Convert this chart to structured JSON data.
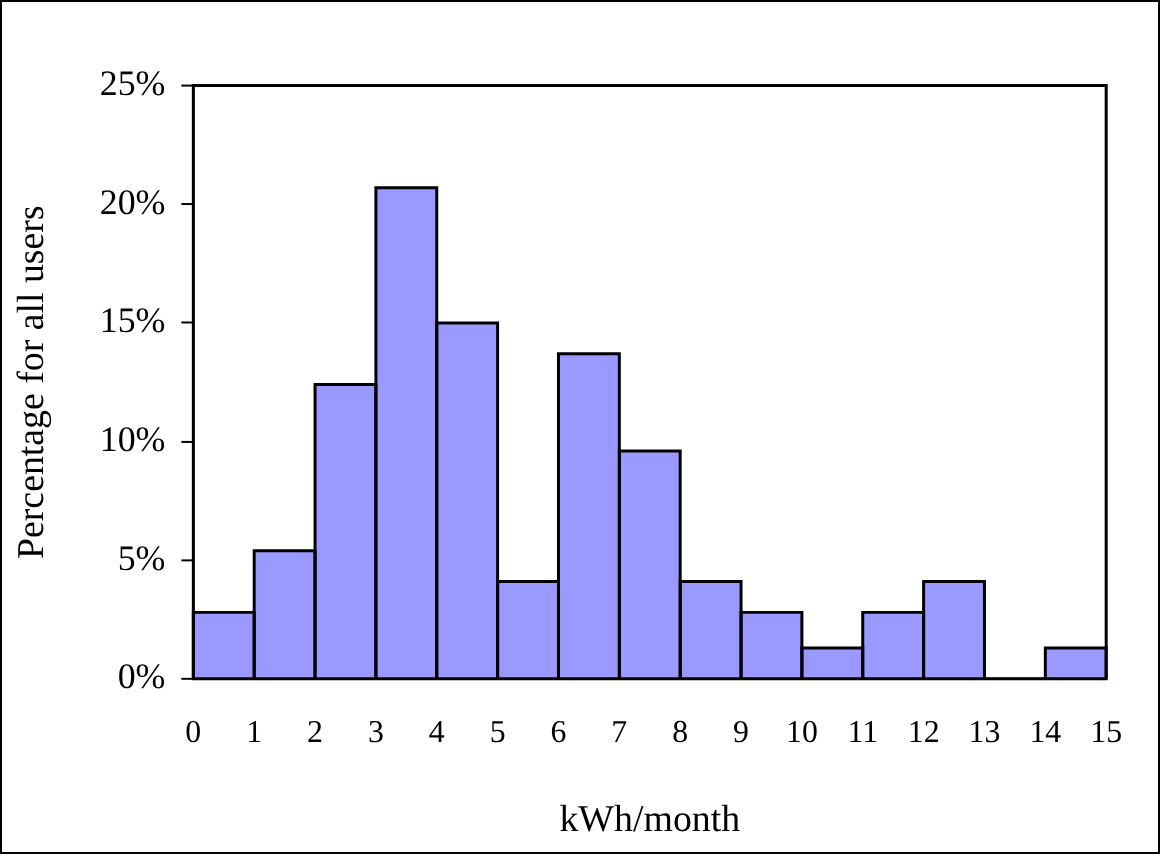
{
  "chart_data": {
    "type": "histogram",
    "xlabel": "kWh/month",
    "ylabel": "Percentage for all users",
    "bins": [
      0,
      1,
      2,
      3,
      4,
      5,
      6,
      7,
      8,
      9,
      10,
      11,
      12,
      13,
      14,
      15
    ],
    "values": [
      2.8,
      5.4,
      12.4,
      20.7,
      15.0,
      4.1,
      13.7,
      9.6,
      4.1,
      2.8,
      1.3,
      2.8,
      4.1,
      0,
      1.3
    ],
    "color": "#9999ff",
    "xlim": [
      0,
      15
    ],
    "xticks": [
      0,
      1,
      2,
      3,
      4,
      5,
      6,
      7,
      8,
      9,
      10,
      11,
      12,
      13,
      14,
      15
    ],
    "ylim": [
      0,
      25
    ],
    "yticks": [
      {
        "value": 0,
        "label": "0%"
      },
      {
        "value": 5,
        "label": "5%"
      },
      {
        "value": 10,
        "label": "10%"
      },
      {
        "value": 15,
        "label": "15%"
      },
      {
        "value": 20,
        "label": "20%"
      },
      {
        "value": 25,
        "label": "25%"
      }
    ],
    "grid": false,
    "legend": false
  }
}
